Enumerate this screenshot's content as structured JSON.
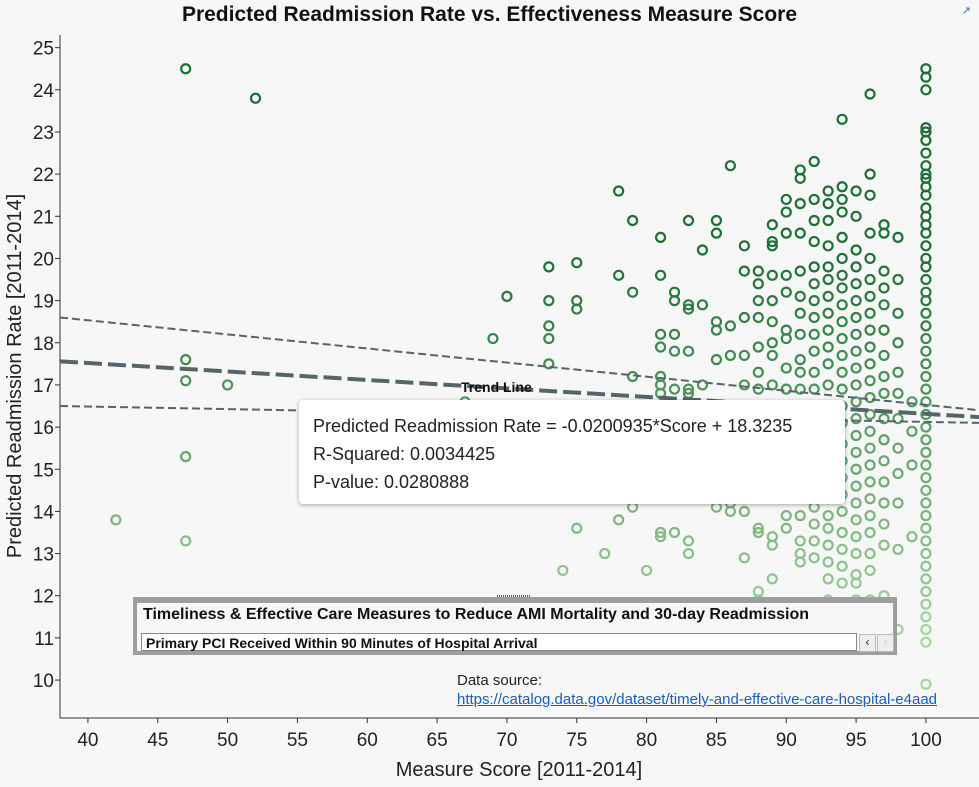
{
  "chart_data": {
    "type": "scatter",
    "title": "Predicted Readmission Rate vs. Effectiveness Measure Score",
    "xlabel": "Measure Score [2011-2014]",
    "ylabel": "Predicted Readmission Rate [2011-2014]",
    "xlim": [
      38,
      103.8
    ],
    "ylim": [
      9.1,
      25.3
    ],
    "xticks": [
      40,
      45,
      50,
      55,
      60,
      65,
      70,
      75,
      80,
      85,
      90,
      95,
      100
    ],
    "yticks": [
      10,
      11,
      12,
      13,
      14,
      15,
      16,
      17,
      18,
      19,
      20,
      21,
      22,
      23,
      24,
      25
    ],
    "grid": false,
    "marker": "open-circle",
    "color_scale": {
      "low": "#a8d5a2",
      "high": "#1f6e36"
    },
    "trend_line": {
      "label": "Trend Line",
      "slope": -0.0200935,
      "intercept": 18.3235,
      "r_squared": 0.0034425,
      "p_value": 0.0280888,
      "upper_band": [
        [
          38,
          18.6
        ],
        [
          103.8,
          16.4
        ]
      ],
      "lower_band": [
        [
          38,
          16.5
        ],
        [
          103.8,
          16.1
        ]
      ]
    },
    "columns": [
      {
        "x": 42,
        "y": [
          13.8
        ]
      },
      {
        "x": 47,
        "y": [
          24.5,
          17.6,
          17.1,
          15.3,
          13.3
        ]
      },
      {
        "x": 50,
        "y": [
          17.0
        ]
      },
      {
        "x": 52,
        "y": [
          23.8
        ]
      },
      {
        "x": 67,
        "y": [
          16.6
        ]
      },
      {
        "x": 69,
        "y": [
          18.1
        ]
      },
      {
        "x": 70,
        "y": [
          19.1
        ]
      },
      {
        "x": 73,
        "y": [
          19.8,
          19.0,
          18.4,
          18.1,
          17.5
        ]
      },
      {
        "x": 74,
        "y": [
          12.6
        ]
      },
      {
        "x": 75,
        "y": [
          19.9,
          19.0,
          18.8,
          13.6
        ]
      },
      {
        "x": 77,
        "y": [
          13.0
        ]
      },
      {
        "x": 78,
        "y": [
          21.6,
          19.6,
          13.8
        ]
      },
      {
        "x": 79,
        "y": [
          20.9,
          19.2,
          17.2,
          14.1
        ]
      },
      {
        "x": 80,
        "y": [
          12.6
        ]
      },
      {
        "x": 81,
        "y": [
          20.5,
          19.6,
          18.2,
          17.9,
          17.2,
          17.0,
          16.8,
          13.5,
          13.4
        ]
      },
      {
        "x": 82,
        "y": [
          19.2,
          19.0,
          18.2,
          17.8,
          16.9,
          13.5
        ]
      },
      {
        "x": 83,
        "y": [
          20.9,
          18.9,
          18.8,
          17.8,
          16.9,
          16.8,
          13.3,
          13.0
        ]
      },
      {
        "x": 84,
        "y": [
          20.2,
          18.9,
          17.0
        ]
      },
      {
        "x": 85,
        "y": [
          20.9,
          20.6,
          18.5,
          18.3,
          17.6,
          14.3,
          14.1
        ]
      },
      {
        "x": 86,
        "y": [
          22.2,
          18.4,
          17.7,
          14.2,
          14.0
        ]
      },
      {
        "x": 87,
        "y": [
          20.3,
          19.7,
          18.6,
          17.7,
          17.0,
          14.4,
          14.0,
          12.9
        ]
      },
      {
        "x": 88,
        "y": [
          19.7,
          19.4,
          19.0,
          18.6,
          17.9,
          17.3,
          16.9,
          14.6,
          13.6,
          13.5,
          12.1,
          11.9
        ]
      },
      {
        "x": 89,
        "y": [
          20.8,
          20.4,
          20.3,
          19.6,
          19.0,
          18.5,
          18.0,
          17.7,
          17.0,
          14.8,
          13.4,
          13.2,
          12.4
        ]
      },
      {
        "x": 90,
        "y": [
          21.4,
          21.1,
          20.6,
          19.6,
          19.2,
          18.3,
          18.1,
          17.4,
          16.9,
          15.4,
          14.9,
          13.9,
          13.6
        ]
      },
      {
        "x": 91,
        "y": [
          22.1,
          21.9,
          21.3,
          20.6,
          19.7,
          19.1,
          18.7,
          18.2,
          17.6,
          17.3,
          16.9,
          15.9,
          15.4,
          15.0,
          14.6,
          13.9,
          13.3,
          13.0,
          12.8
        ]
      },
      {
        "x": 92,
        "y": [
          22.3,
          21.4,
          20.9,
          20.4,
          19.8,
          19.4,
          19.0,
          18.6,
          18.2,
          17.8,
          17.3,
          16.9,
          16.3,
          15.9,
          15.5,
          15.1,
          14.5,
          14.1,
          13.7,
          13.3,
          12.9
        ]
      },
      {
        "x": 93,
        "y": [
          21.6,
          21.3,
          20.9,
          20.3,
          19.8,
          19.5,
          19.1,
          18.7,
          18.3,
          17.9,
          17.5,
          17.0,
          16.5,
          16.1,
          15.7,
          15.2,
          14.8,
          14.3,
          13.9,
          13.6,
          13.2,
          12.8,
          12.4,
          11.9
        ]
      },
      {
        "x": 94,
        "y": [
          23.3,
          21.7,
          21.4,
          21.1,
          20.5,
          20.0,
          19.6,
          19.3,
          18.9,
          18.5,
          18.1,
          17.7,
          17.3,
          16.9,
          16.5,
          16.1,
          15.6,
          15.2,
          14.8,
          14.4,
          14.0,
          13.5,
          13.1,
          12.7,
          12.3
        ]
      },
      {
        "x": 95,
        "y": [
          21.6,
          21.0,
          20.2,
          19.8,
          19.4,
          19.0,
          18.6,
          18.2,
          17.8,
          17.4,
          17.0,
          16.6,
          16.2,
          15.8,
          15.4,
          15.0,
          14.6,
          14.2,
          13.8,
          13.4,
          13.0,
          12.5,
          12.3,
          11.9
        ]
      },
      {
        "x": 96,
        "y": [
          23.9,
          22.0,
          21.5,
          20.6,
          20.0,
          19.5,
          19.1,
          18.7,
          18.3,
          17.9,
          17.5,
          17.1,
          16.7,
          16.3,
          15.9,
          15.5,
          15.1,
          14.7,
          14.3,
          13.9,
          13.5,
          13.0,
          12.6,
          11.9
        ]
      },
      {
        "x": 97,
        "y": [
          20.8,
          20.6,
          19.7,
          19.3,
          18.9,
          18.3,
          17.7,
          17.2,
          16.8,
          16.2,
          15.7,
          15.2,
          14.7,
          14.2,
          13.7,
          13.2,
          12.0
        ]
      },
      {
        "x": 98,
        "y": [
          20.5,
          19.5,
          18.7,
          18.0,
          17.3,
          16.8,
          16.2,
          15.5,
          14.9,
          14.2,
          13.1,
          11.2
        ]
      },
      {
        "x": 99,
        "y": [
          16.6,
          15.9,
          15.1,
          13.4
        ]
      },
      {
        "x": 100,
        "y": [
          24.5,
          24.3,
          24.0,
          23.1,
          23.0,
          22.8,
          22.5,
          22.2,
          22.0,
          21.9,
          21.7,
          21.5,
          21.2,
          21.0,
          20.8,
          20.6,
          20.3,
          20.0,
          19.8,
          19.5,
          19.2,
          19.0,
          18.7,
          18.4,
          18.1,
          17.8,
          17.5,
          17.2,
          16.9,
          16.6,
          16.3,
          16.0,
          15.7,
          15.4,
          15.1,
          14.8,
          14.5,
          14.2,
          13.9,
          13.6,
          13.3,
          13.0,
          12.7,
          12.4,
          12.1,
          11.8,
          11.5,
          11.2,
          10.9,
          9.9
        ]
      }
    ]
  },
  "tooltip": {
    "equation": "Predicted Readmission Rate = -0.0200935*Score + 18.3235",
    "r_squared": "R-Squared: 0.0034425",
    "p_value": "P-value: 0.0280888"
  },
  "filter": {
    "title": "Timeliness & Effective Care Measures to Reduce AMI Mortality and 30-day Readmission",
    "selected": "Primary PCI Received Within 90 Minutes of Hospital Arrival",
    "prev_icon": "chevron-left-icon",
    "next_icon": "chevron-right-icon"
  },
  "source": {
    "label": "Data source:",
    "url": "https://catalog.data.gov/dataset/timely-and-effective-care-hospital-e4aad"
  },
  "popout_icon": "external-link-icon"
}
